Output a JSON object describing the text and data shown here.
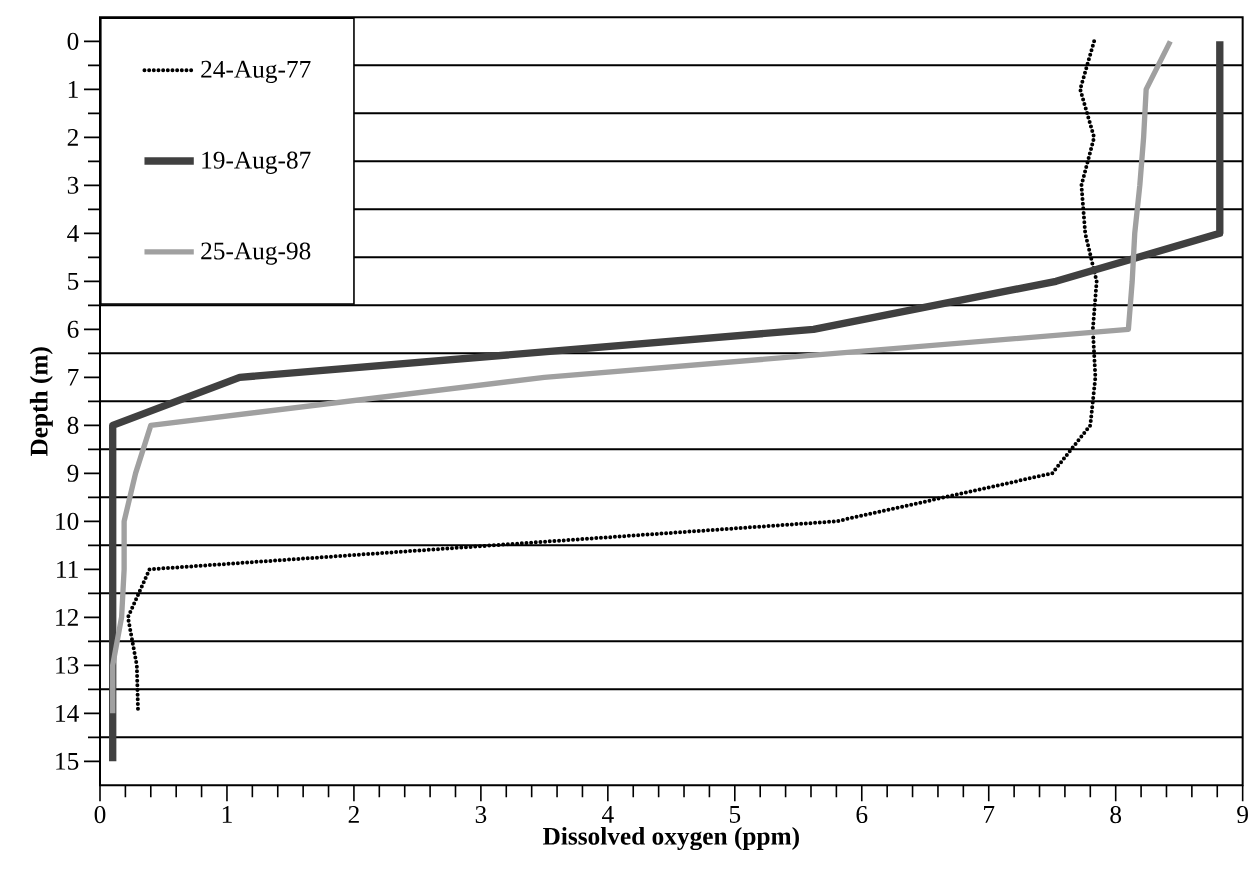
{
  "chart_data": {
    "type": "line",
    "xlabel": "Dissolved oxygen (ppm)",
    "ylabel": "Depth (m)",
    "xlim": [
      0,
      9
    ],
    "ylim": [
      15.5,
      -0.5
    ],
    "xticks": [
      0,
      {
        "value": 0.2,
        "label": null
      },
      {
        "value": 0.4,
        "label": null
      },
      {
        "value": 0.6,
        "label": null
      },
      {
        "value": 0.8,
        "label": null
      },
      1,
      {
        "value": 1.2,
        "label": null
      },
      {
        "value": 1.4,
        "label": null
      },
      {
        "value": 1.6,
        "label": null
      },
      {
        "value": 1.8,
        "label": null
      },
      2,
      {
        "value": 2.2,
        "label": null
      },
      {
        "value": 2.4,
        "label": null
      },
      {
        "value": 2.6,
        "label": null
      },
      {
        "value": 2.8,
        "label": null
      },
      3,
      {
        "value": 3.2,
        "label": null
      },
      {
        "value": 3.4,
        "label": null
      },
      {
        "value": 3.6,
        "label": null
      },
      {
        "value": 3.8,
        "label": null
      },
      4,
      {
        "value": 4.2,
        "label": null
      },
      {
        "value": 4.4,
        "label": null
      },
      {
        "value": 4.6,
        "label": null
      },
      {
        "value": 4.8,
        "label": null
      },
      5,
      {
        "value": 5.2,
        "label": null
      },
      {
        "value": 5.4,
        "label": null
      },
      {
        "value": 5.6,
        "label": null
      },
      {
        "value": 5.8,
        "label": null
      },
      6,
      {
        "value": 6.2,
        "label": null
      },
      {
        "value": 6.4,
        "label": null
      },
      {
        "value": 6.6,
        "label": null
      },
      {
        "value": 6.8,
        "label": null
      },
      7,
      {
        "value": 7.2,
        "label": null
      },
      {
        "value": 7.4,
        "label": null
      },
      {
        "value": 7.6,
        "label": null
      },
      {
        "value": 7.8,
        "label": null
      },
      8,
      {
        "value": 8.2,
        "label": null
      },
      {
        "value": 8.4,
        "label": null
      },
      {
        "value": 8.6,
        "label": null
      },
      {
        "value": 8.8,
        "label": null
      },
      9
    ],
    "yticks": [
      0,
      {
        "value": 0.5,
        "label": null
      },
      1,
      {
        "value": 1.5,
        "label": null
      },
      2,
      {
        "value": 2.5,
        "label": null
      },
      3,
      {
        "value": 3.5,
        "label": null
      },
      4,
      {
        "value": 4.5,
        "label": null
      },
      5,
      {
        "value": 5.5,
        "label": null
      },
      6,
      {
        "value": 6.5,
        "label": null
      },
      7,
      {
        "value": 7.5,
        "label": null
      },
      8,
      {
        "value": 8.5,
        "label": null
      },
      9,
      {
        "value": 9.5,
        "label": null
      },
      10,
      {
        "value": 10.5,
        "label": null
      },
      11,
      {
        "value": 11.5,
        "label": null
      },
      12,
      {
        "value": 12.5,
        "label": null
      },
      13,
      {
        "value": 13.5,
        "label": null
      },
      14,
      {
        "value": 14.5,
        "label": null
      },
      15
    ],
    "grid": "y",
    "legend": "top left",
    "series": [
      {
        "name": "24-Aug-77",
        "color": "#000000",
        "line_style": "dotted",
        "x": [
          7.83,
          7.72,
          7.83,
          7.73,
          7.76,
          7.85,
          7.82,
          7.84,
          7.8,
          7.5,
          5.8,
          0.39,
          0.22,
          0.29,
          0.3
        ],
        "values": [
          0,
          1,
          2,
          3,
          4,
          5,
          6,
          7,
          8,
          9,
          10,
          11,
          12,
          13,
          14
        ]
      },
      {
        "name": "19-Aug-87",
        "color": "#404040",
        "line_style": "solid",
        "x": [
          8.82,
          8.82,
          7.53,
          5.62,
          1.1,
          0.1,
          0.1,
          0.1,
          0.1,
          0.1,
          0.1,
          0.1,
          0.1
        ],
        "values": [
          0,
          4,
          5,
          6,
          7,
          8,
          9,
          10,
          11,
          12,
          13,
          14,
          15
        ]
      },
      {
        "name": "25-Aug-98",
        "color": "#a0a0a0",
        "line_style": "solid",
        "x": [
          8.43,
          8.24,
          8.22,
          8.19,
          8.15,
          8.13,
          8.1,
          3.5,
          0.4,
          0.28,
          0.19,
          0.19,
          0.17,
          0.1,
          0.1
        ],
        "values": [
          0,
          1,
          2,
          3,
          4,
          5,
          6,
          7,
          8,
          9,
          10,
          11,
          12,
          13,
          14
        ]
      }
    ]
  }
}
